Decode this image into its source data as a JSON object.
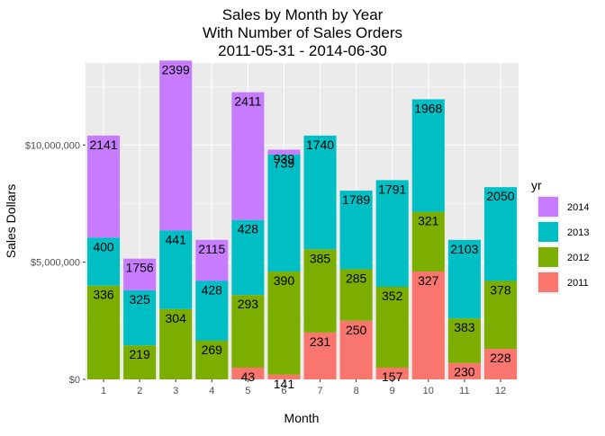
{
  "chart_data": {
    "type": "bar",
    "stacked": true,
    "title_lines": [
      "Sales by Month by Year",
      "With Number of Sales Orders",
      "2011-05-31  -  2014-06-30"
    ],
    "xlabel": "Month",
    "ylabel": "Sales Dollars",
    "categories": [
      "1",
      "2",
      "3",
      "4",
      "5",
      "6",
      "7",
      "8",
      "9",
      "10",
      "11",
      "12"
    ],
    "ylim": [
      0,
      13500000
    ],
    "yticks": [
      0,
      5000000,
      10000000
    ],
    "ytick_labels": [
      "$0",
      "$5,000,000",
      "$10,000,000"
    ],
    "grid": true,
    "legend": {
      "title": "yr",
      "placement": "right",
      "entries": [
        {
          "label": "2014",
          "color": "#C77CFF"
        },
        {
          "label": "2013",
          "color": "#00BFC4"
        },
        {
          "label": "2012",
          "color": "#7CAE00"
        },
        {
          "label": "2011",
          "color": "#F8766D"
        }
      ]
    },
    "stack_order": [
      "2011",
      "2012",
      "2013",
      "2014"
    ],
    "series": [
      {
        "name": "2011",
        "values": [
          null,
          null,
          null,
          null,
          500000,
          200000,
          2000000,
          2500000,
          500000,
          4600000,
          700000,
          1300000
        ],
        "labels": [
          null,
          null,
          null,
          null,
          "43",
          "141",
          "231",
          "250",
          "157",
          "327",
          "230",
          "228"
        ]
      },
      {
        "name": "2012",
        "values": [
          4000000,
          1450000,
          3000000,
          1650000,
          3100000,
          4400000,
          3550000,
          2200000,
          3450000,
          2550000,
          1900000,
          2900000
        ],
        "labels": [
          "336",
          "219",
          "304",
          "269",
          "293",
          "390",
          "385",
          "285",
          "352",
          "321",
          "383",
          "378"
        ]
      },
      {
        "name": "2013",
        "values": [
          2050000,
          2350000,
          3350000,
          2550000,
          3200000,
          5000000,
          4850000,
          3350000,
          4550000,
          4800000,
          3350000,
          4000000
        ],
        "labels": [
          "400",
          "325",
          "441",
          "428",
          "428",
          "739",
          "1740",
          "1789",
          "1791",
          "1968",
          "2103",
          "2050"
        ]
      },
      {
        "name": "2014",
        "values": [
          4350000,
          1350000,
          7250000,
          1750000,
          5450000,
          200000,
          null,
          null,
          null,
          null,
          null,
          null
        ],
        "labels": [
          "2141",
          "1756",
          "2399",
          "2115",
          "2411",
          "939",
          null,
          null,
          null,
          null,
          null,
          null
        ]
      }
    ]
  }
}
